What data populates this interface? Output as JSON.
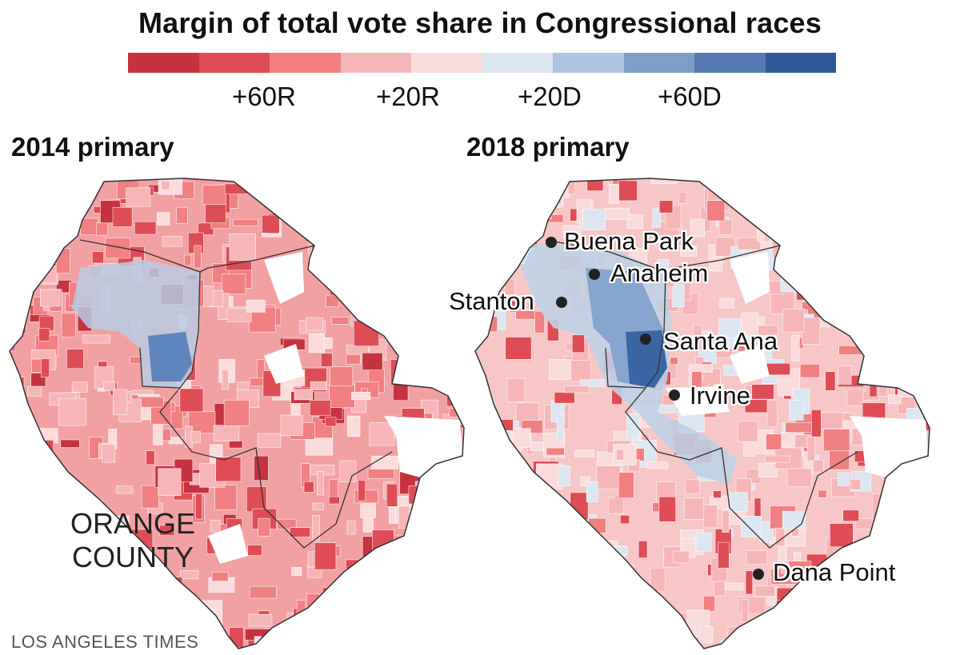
{
  "header": {
    "title": "Margin of total vote share in Congressional races"
  },
  "legend": {
    "colors": [
      "#c4333f",
      "#de4d55",
      "#f08082",
      "#f6b6b8",
      "#fbdcdd",
      "#dde7f1",
      "#aec3de",
      "#7e9ec9",
      "#5479b2",
      "#2d5a96"
    ],
    "labels": [
      "+60R",
      "+20R",
      "+20D",
      "+60D"
    ]
  },
  "maps": [
    {
      "id": "2014",
      "title": "2014 primary",
      "county_label_lines": [
        "ORANGE",
        "COUNTY"
      ],
      "cities": []
    },
    {
      "id": "2018",
      "title": "2018 primary",
      "cities": [
        "Buena Park",
        "Anaheim",
        "Stanton",
        "Santa Ana",
        "Irvine",
        "Dana Point"
      ]
    }
  ],
  "credit": "LOS ANGELES TIMES"
}
